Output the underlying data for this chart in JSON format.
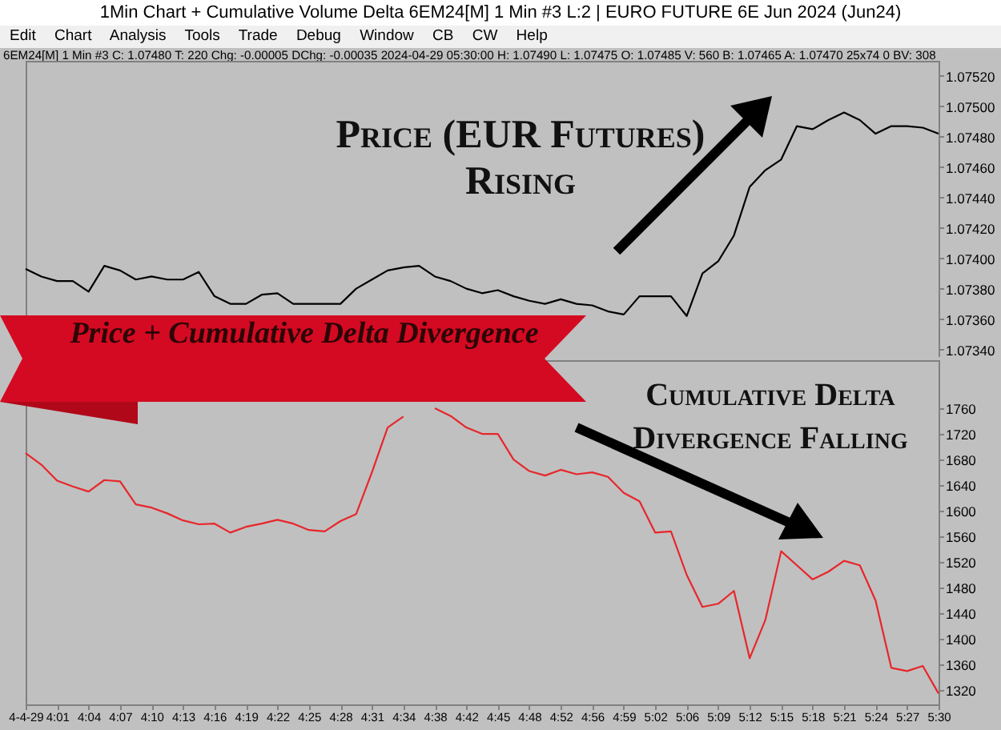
{
  "chart_data": [
    {
      "type": "line",
      "title": "1Min Chart + Cumulative Volume Delta 6EM24[M]  1 Min  #3 L:2 | EURO FUTURE 6E Jun 2024 (Jun24)",
      "subtitle": "6EM24[M]  1 Min  #3 C: 1.07480 T: 220 Chg: -0.00005 DChg: -0.00035 2024-04-29 05:30:00 H: 1.07490 L: 1.07475 O: 1.07485 V: 560 B: 1.07465 A: 1.07470 25x74 0 BV: 308",
      "annotations": [
        "Edit Chart Analysis Tools Trade Debug Window CB CW Help",
        "Price (EUR Futures) Rising",
        "Price + Cumulative Delta Divergence"
      ],
      "categories": [
        null,
        null,
        null,
        null,
        null,
        null,
        null,
        null,
        null,
        null,
        null,
        null,
        null,
        null,
        null,
        null,
        null,
        null,
        null,
        null,
        null,
        null,
        null,
        null,
        null,
        null,
        null,
        null,
        null,
        null,
        null,
        null,
        null,
        null,
        null,
        null,
        null,
        null,
        null,
        null,
        null,
        null,
        null,
        null,
        null,
        null,
        null,
        null,
        null,
        null,
        null,
        null,
        null,
        null,
        null,
        null,
        null,
        null,
        null
      ],
      "series": [
        {
          "color": "#000000",
          "values": [
            1.07393,
            1.07388,
            1.07385,
            1.07385,
            1.07378,
            1.07395,
            1.07392,
            1.07386,
            1.07388,
            1.07386,
            1.07386,
            1.07391,
            1.07375,
            1.0737,
            1.0737,
            1.07376,
            1.07377,
            1.0737,
            1.0737,
            1.0737,
            1.0737,
            1.0738,
            1.07386,
            1.07392,
            1.07394,
            1.07395,
            1.07388,
            1.07385,
            1.0738,
            1.07377,
            1.07379,
            1.07375,
            1.07372,
            1.0737,
            1.07373,
            1.0737,
            1.07369,
            1.07365,
            1.07363,
            1.07375,
            1.07375,
            1.07375,
            1.07362,
            1.0739,
            1.07398,
            1.07415,
            1.07447,
            1.07458,
            1.07465,
            1.07487,
            1.07485,
            1.07491,
            1.07496,
            1.07491,
            1.07482,
            1.07487,
            1.07487,
            1.07486,
            1.07482
          ]
        }
      ],
      "ylim": [
        1.07335,
        1.0753
      ],
      "yticks": [
        {
          "value": 1.0734,
          "label": "1.07340"
        },
        {
          "value": 1.0736,
          "label": "1.07360"
        },
        {
          "value": 1.0738,
          "label": "1.07380"
        },
        {
          "value": 1.074,
          "label": "1.07400"
        },
        {
          "value": 1.0742,
          "label": "1.07420"
        },
        {
          "value": 1.0744,
          "label": "1.07440"
        },
        {
          "value": 1.0746,
          "label": "1.07460"
        },
        {
          "value": 1.0748,
          "label": "1.07480"
        },
        {
          "value": 1.075,
          "label": "1.07500"
        },
        {
          "value": 1.0752,
          "label": "1.07520"
        }
      ],
      "tick_labels": "y"
    },
    {
      "type": "line",
      "annotations": [
        "Cumulative Delta Divergence Falling"
      ],
      "categories": [
        "4-4-29",
        null,
        "4:01",
        null,
        "4:04",
        null,
        "4:07",
        null,
        "4:10",
        null,
        "4:13",
        null,
        "4:16",
        null,
        "4:19",
        null,
        "4:22",
        null,
        "4:25",
        null,
        "4:28",
        null,
        "4:31",
        null,
        "4:34",
        null,
        "4:38",
        null,
        "4:42",
        null,
        "4:45",
        null,
        "4:48",
        null,
        "4:52",
        null,
        "4:56",
        null,
        "4:59",
        null,
        "5:02",
        null,
        "5:06",
        null,
        "5:09",
        null,
        "5:12",
        null,
        "5:15",
        null,
        "5:18",
        null,
        "5:21",
        null,
        "5:24",
        null,
        "5:27",
        null,
        "5:30"
      ],
      "series": [
        {
          "color": "#e8262b",
          "values": [
            1690,
            1672,
            1647,
            1638,
            1630,
            1648,
            1646,
            1610,
            1605,
            1596,
            1585,
            1579,
            1580,
            1566,
            1575,
            1580,
            1586,
            1580,
            1570,
            1568,
            1584,
            1595,
            1660,
            1730,
            1747,
            null,
            1760,
            1748,
            1730,
            1720,
            1720,
            1680,
            1662,
            1655,
            1664,
            1657,
            1660,
            1653,
            1628,
            1615,
            1566,
            1568,
            1500,
            1450,
            1455,
            1475,
            1370,
            1430,
            1537,
            1515,
            1493,
            1505,
            1522,
            1515,
            1460,
            1355,
            1350,
            1358,
            1315
          ]
        }
      ],
      "ylim": [
        1298,
        1835
      ],
      "yticks": [
        1320,
        1360,
        1400,
        1440,
        1480,
        1520,
        1560,
        1600,
        1640,
        1680,
        1720,
        1760
      ]
    }
  ]
}
